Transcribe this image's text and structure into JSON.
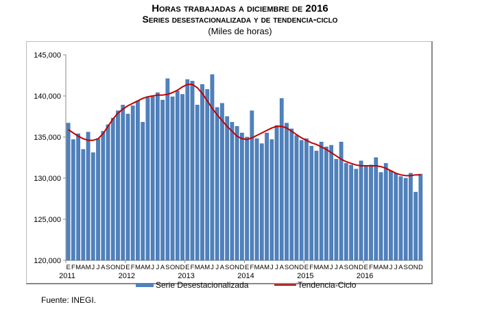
{
  "title": "Horas trabajadas a diciembre de 2016",
  "subtitle": "Series desestacionalizada y de tendencia-ciclo",
  "units": "(Miles de horas)",
  "source": "Fuente: INEGI.",
  "chart_data": {
    "type": "bar",
    "title": "Horas trabajadas a diciembre de 2016",
    "ylim": [
      120000,
      145000
    ],
    "yticks": [
      "120,000",
      "125,000",
      "130,000",
      "135,000",
      "140,000",
      "145,000"
    ],
    "ytick_values": [
      120000,
      125000,
      130000,
      135000,
      140000,
      145000
    ],
    "month_labels": [
      "E",
      "F",
      "M",
      "A",
      "M",
      "J",
      "J",
      "A",
      "S",
      "O",
      "N",
      "D"
    ],
    "years": [
      "2011",
      "2012",
      "2013",
      "2014",
      "2015",
      "2016"
    ],
    "legend": {
      "position": "bottom",
      "bar": "Serie Desestacionalizada",
      "line": "Tendencia-Ciclo"
    },
    "colors": {
      "bar": "#4f81bd",
      "line": "#c00000"
    },
    "series": [
      {
        "name": "Serie Desestacionalizada",
        "type": "bar",
        "values": [
          136700,
          134700,
          135400,
          133500,
          135600,
          133100,
          134800,
          135700,
          136500,
          137300,
          138200,
          138900,
          137800,
          138800,
          139400,
          136800,
          139800,
          139900,
          140400,
          139500,
          142100,
          139900,
          140600,
          140200,
          142000,
          141800,
          138900,
          141400,
          140800,
          142600,
          138600,
          139100,
          137500,
          136800,
          136300,
          135500,
          135000,
          138200,
          134800,
          134200,
          135500,
          134700,
          136400,
          139700,
          136700,
          136000,
          135200,
          134600,
          134800,
          133900,
          133300,
          134400,
          133800,
          134000,
          132300,
          134400,
          131800,
          131600,
          131100,
          132100,
          131500,
          131600,
          132500,
          130700,
          131800,
          130900,
          130600,
          130200,
          130000,
          130600,
          128300,
          130500
        ]
      },
      {
        "name": "Tendencia-Ciclo",
        "type": "line",
        "values": [
          135900,
          135500,
          135100,
          134800,
          134600,
          134600,
          134800,
          135400,
          136300,
          137200,
          137900,
          138400,
          138800,
          139100,
          139400,
          139700,
          139900,
          140000,
          140100,
          140100,
          140200,
          140400,
          140700,
          141100,
          141400,
          141400,
          141000,
          140300,
          139400,
          138500,
          137700,
          137000,
          136300,
          135700,
          135100,
          134800,
          134700,
          134900,
          135200,
          135500,
          135800,
          136100,
          136300,
          136300,
          136100,
          135700,
          135300,
          134900,
          134600,
          134300,
          134100,
          133800,
          133500,
          133100,
          132700,
          132300,
          132000,
          131800,
          131600,
          131500,
          131500,
          131500,
          131500,
          131400,
          131200,
          130900,
          130600,
          130400,
          130300,
          130300,
          130400,
          130400
        ]
      }
    ]
  }
}
